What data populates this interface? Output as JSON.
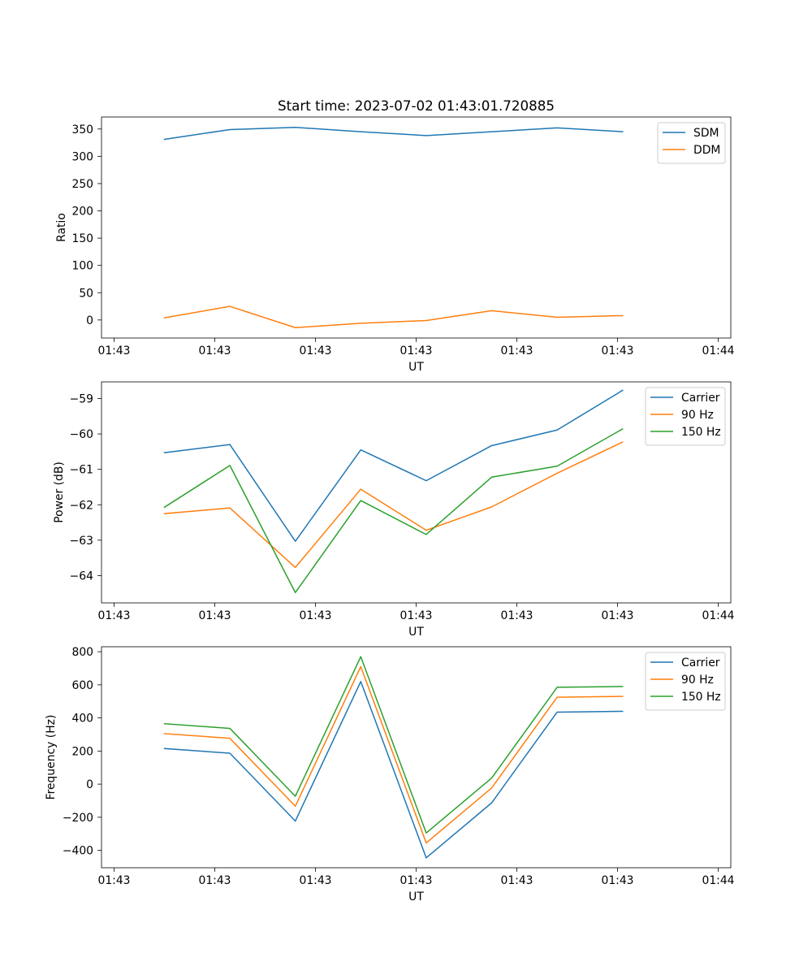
{
  "chart_data": [
    {
      "type": "line",
      "title": "Start time: 2023-07-02 01:43:01.720885",
      "xlabel": "UT",
      "ylabel": "Ratio",
      "x_tick_labels": [
        "01:43",
        "01:43",
        "01:43",
        "01:43",
        "01:43",
        "01:43",
        "01:44"
      ],
      "xlim": [
        -0.125,
        1.125
      ],
      "x_ticks": [
        -0.1,
        0.1,
        0.3,
        0.5,
        0.7,
        0.9,
        1.1
      ],
      "x": [
        0,
        0.13,
        0.26,
        0.39,
        0.52,
        0.65,
        0.78,
        0.91
      ],
      "ylim": [
        -33,
        372
      ],
      "y_ticks": [
        0,
        50,
        100,
        150,
        200,
        250,
        300,
        350
      ],
      "legend_position": "top-right",
      "series": [
        {
          "name": "SDM",
          "color": "#1f77b4",
          "values": [
            331,
            349,
            353,
            345,
            338,
            345,
            352,
            345
          ]
        },
        {
          "name": "DDM",
          "color": "#ff7f0e",
          "values": [
            4,
            25,
            -14,
            -6,
            -1,
            17,
            5,
            8
          ]
        }
      ]
    },
    {
      "type": "line",
      "title": "",
      "xlabel": "UT",
      "ylabel": "Power (dB)",
      "x_tick_labels": [
        "01:43",
        "01:43",
        "01:43",
        "01:43",
        "01:43",
        "01:43",
        "01:44"
      ],
      "xlim": [
        -0.125,
        1.125
      ],
      "x_ticks": [
        -0.1,
        0.1,
        0.3,
        0.5,
        0.7,
        0.9,
        1.1
      ],
      "x": [
        0,
        0.13,
        0.26,
        0.39,
        0.52,
        0.65,
        0.78,
        0.91
      ],
      "ylim": [
        -64.77,
        -58.53
      ],
      "y_ticks": [
        -64,
        -63,
        -62,
        -61,
        -60,
        -59
      ],
      "legend_position": "top-right",
      "series": [
        {
          "name": "Carrier",
          "color": "#1f77b4",
          "values": [
            -60.53,
            -60.3,
            -63.03,
            -60.45,
            -61.32,
            -60.33,
            -59.89,
            -58.77
          ]
        },
        {
          "name": "90 Hz",
          "color": "#ff7f0e",
          "values": [
            -62.25,
            -62.09,
            -63.77,
            -61.56,
            -62.72,
            -62.06,
            -61.11,
            -60.23
          ]
        },
        {
          "name": "150 Hz",
          "color": "#2ca02c",
          "values": [
            -62.07,
            -60.89,
            -64.48,
            -61.88,
            -62.84,
            -61.22,
            -60.91,
            -59.86
          ]
        }
      ]
    },
    {
      "type": "line",
      "title": "",
      "xlabel": "UT",
      "ylabel": "Frequency (Hz)",
      "x_tick_labels": [
        "01:43",
        "01:43",
        "01:43",
        "01:43",
        "01:43",
        "01:43",
        "01:44"
      ],
      "xlim": [
        -0.125,
        1.125
      ],
      "x_ticks": [
        -0.1,
        0.1,
        0.3,
        0.5,
        0.7,
        0.9,
        1.1
      ],
      "x": [
        0,
        0.13,
        0.26,
        0.39,
        0.52,
        0.65,
        0.78,
        0.91
      ],
      "ylim": [
        -505,
        830
      ],
      "y_ticks": [
        -400,
        -200,
        0,
        200,
        400,
        600,
        800
      ],
      "legend_position": "top-right",
      "series": [
        {
          "name": "Carrier",
          "color": "#1f77b4",
          "values": [
            215,
            187,
            -223,
            620,
            -445,
            -113,
            435,
            440
          ]
        },
        {
          "name": "90 Hz",
          "color": "#ff7f0e",
          "values": [
            305,
            277,
            -133,
            710,
            -355,
            -23,
            525,
            530
          ]
        },
        {
          "name": "150 Hz",
          "color": "#2ca02c",
          "values": [
            365,
            337,
            -73,
            770,
            -295,
            37,
            585,
            590
          ]
        }
      ]
    }
  ]
}
